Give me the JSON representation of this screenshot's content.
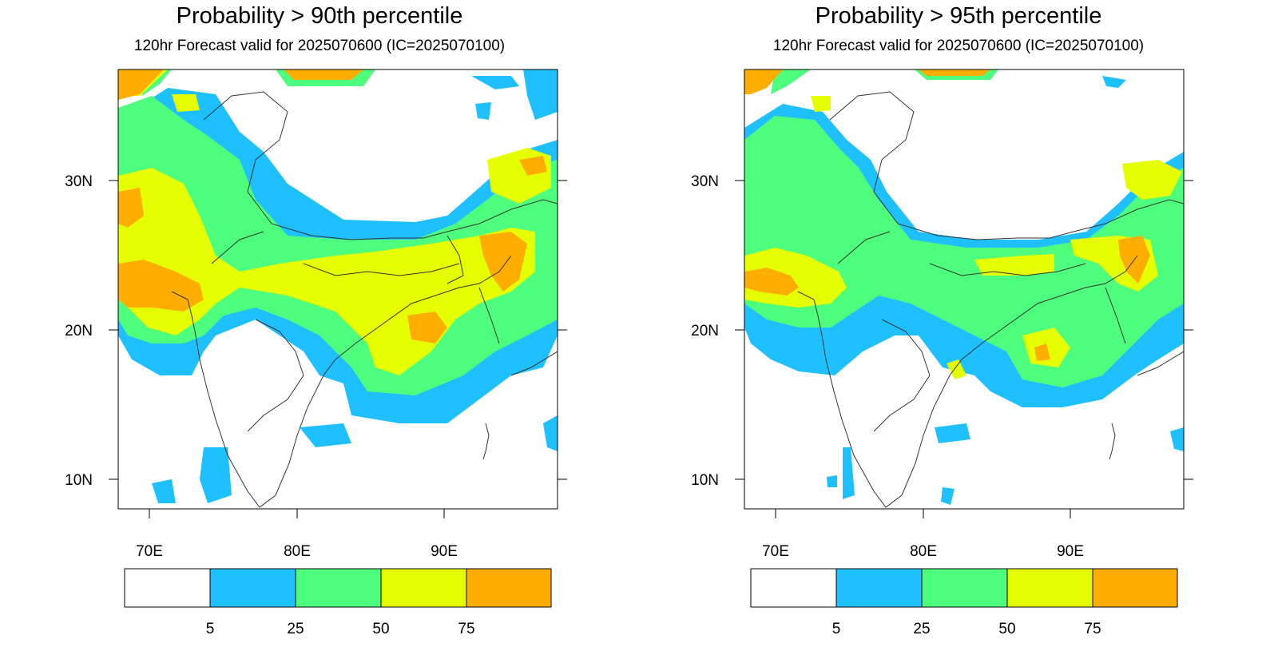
{
  "panels": [
    {
      "title": "Probability > 90th percentile",
      "subtitle": "120hr Forecast valid for 2025070600 (IC=2025070100)"
    },
    {
      "title": "Probability > 95th percentile",
      "subtitle": "120hr Forecast valid for 2025070600 (IC=2025070100)"
    }
  ],
  "axes": {
    "lat_labels": [
      "30N",
      "20N",
      "10N"
    ],
    "lon_labels": [
      "70E",
      "80E",
      "90E"
    ]
  },
  "colorbar": {
    "colors": [
      "#ffffff",
      "#1ec0ff",
      "#4dff7c",
      "#e6ff00",
      "#ffae00"
    ],
    "boundaries": [
      "5",
      "25",
      "50",
      "75"
    ]
  }
}
